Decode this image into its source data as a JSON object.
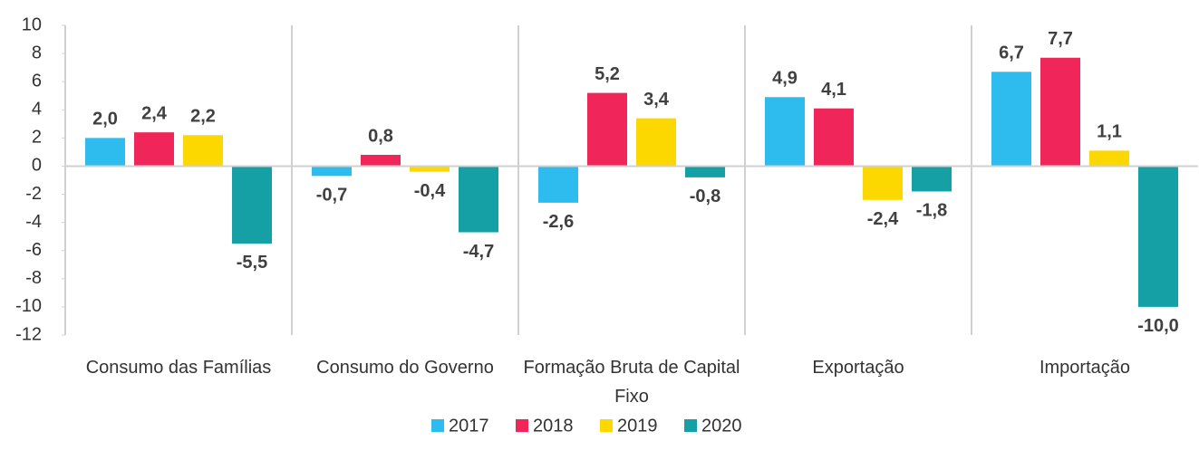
{
  "chart_data": {
    "type": "bar",
    "categories": [
      "Consumo das Famílias",
      "Consumo do Governo",
      "Formação Bruta de Capital Fixo",
      "Exportação",
      "Importação"
    ],
    "series": [
      {
        "name": "2017",
        "color": "#2ebbee",
        "values": [
          2.0,
          -0.7,
          -2.6,
          4.9,
          6.7
        ],
        "value_labels": [
          "2,0",
          "-0,7",
          "-2,6",
          "4,9",
          "6,7"
        ]
      },
      {
        "name": "2018",
        "color": "#f0265a",
        "values": [
          2.4,
          0.8,
          5.2,
          4.1,
          7.7
        ],
        "value_labels": [
          "2,4",
          "0,8",
          "5,2",
          "4,1",
          "7,7"
        ]
      },
      {
        "name": "2019",
        "color": "#fcd700",
        "values": [
          2.2,
          -0.4,
          3.4,
          -2.4,
          1.1
        ],
        "value_labels": [
          "2,2",
          "-0,4",
          "3,4",
          "-2,4",
          "1,1"
        ]
      },
      {
        "name": "2020",
        "color": "#14a0a5",
        "values": [
          -5.5,
          -4.7,
          -0.8,
          -1.8,
          -10.0
        ],
        "value_labels": [
          "-5,5",
          "-4,7",
          "-0,8",
          "-1,8",
          "-10,0"
        ]
      }
    ],
    "ylim": [
      -12,
      10
    ],
    "yticks": [
      10,
      8,
      6,
      4,
      2,
      0,
      -2,
      -4,
      -6,
      -8,
      -10,
      -12
    ],
    "legend": "bottom"
  }
}
